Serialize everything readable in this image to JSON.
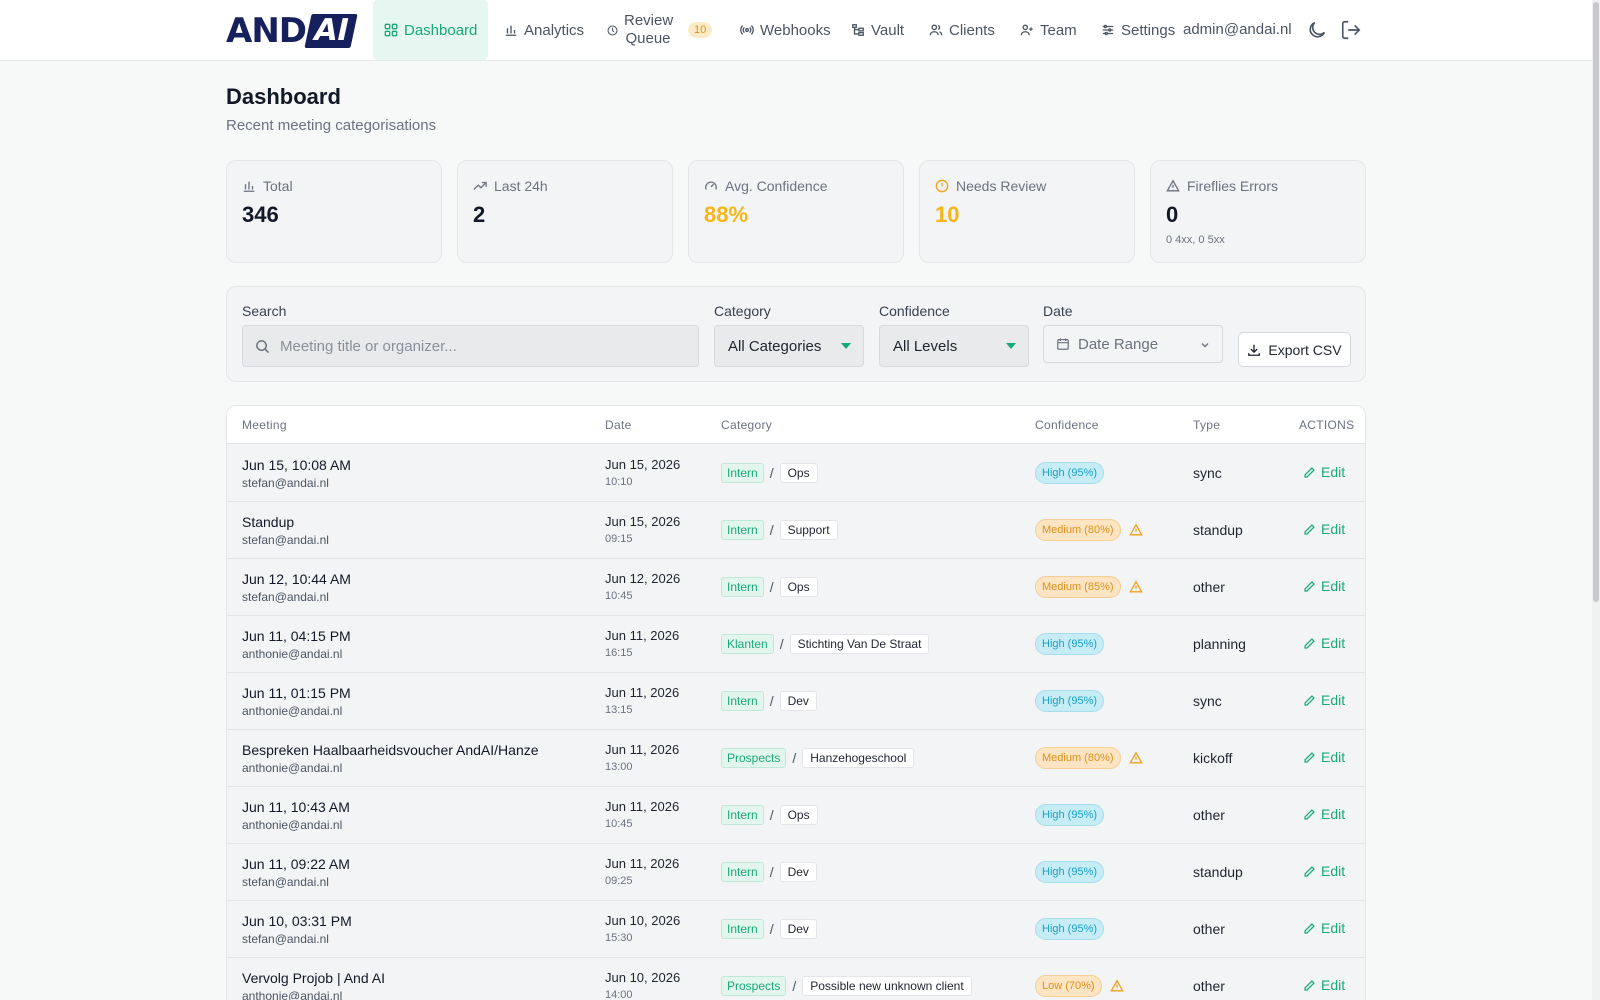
{
  "brand": {
    "logo_left": "AND",
    "logo_right": "AI"
  },
  "nav": {
    "items": [
      {
        "label": "Dashboard",
        "icon": "grid-icon",
        "active": true
      },
      {
        "label": "Analytics",
        "icon": "bar-chart-icon"
      },
      {
        "label": "Review Queue",
        "icon": "clock-icon",
        "badge": "10"
      },
      {
        "label": "Webhooks",
        "icon": "broadcast-icon"
      },
      {
        "label": "Vault",
        "icon": "folder-tree-icon"
      },
      {
        "label": "Clients",
        "icon": "users-icon"
      },
      {
        "label": "Team",
        "icon": "user-plus-icon"
      },
      {
        "label": "Settings",
        "icon": "sliders-icon"
      }
    ],
    "user_email": "admin@andai.nl"
  },
  "header": {
    "title": "Dashboard",
    "subtitle": "Recent meeting categorisations"
  },
  "stats": [
    {
      "label": "Total",
      "value": "346",
      "icon": "bar-chart-icon"
    },
    {
      "label": "Last 24h",
      "value": "2",
      "icon": "trending-up-icon"
    },
    {
      "label": "Avg. Confidence",
      "value": "88%",
      "icon": "gauge-icon"
    },
    {
      "label": "Needs Review",
      "value": "10",
      "icon": "alert-circle-icon"
    },
    {
      "label": "Fireflies Errors",
      "value": "0",
      "sub": "0 4xx, 0 5xx",
      "icon": "alert-triangle-icon"
    }
  ],
  "filters": {
    "search_label": "Search",
    "search_placeholder": "Meeting title or organizer...",
    "category_label": "Category",
    "category_value": "All Categories",
    "confidence_label": "Confidence",
    "confidence_value": "All Levels",
    "date_label": "Date",
    "date_placeholder": "Date Range",
    "export_label": "Export CSV"
  },
  "table": {
    "headers": {
      "meeting": "Meeting",
      "date": "Date",
      "category": "Category",
      "confidence": "Confidence",
      "type": "Type",
      "actions": "ACTIONS"
    },
    "edit_label": "Edit",
    "rows": [
      {
        "title": "Jun 15, 10:08 AM",
        "organizer": "stefan@andai.nl",
        "date": "Jun 15, 2026",
        "time": "10:10",
        "cat": "Intern",
        "sub": "Ops",
        "conf": "High (95%)",
        "level": "high",
        "type": "sync"
      },
      {
        "title": "Standup",
        "organizer": "stefan@andai.nl",
        "date": "Jun 15, 2026",
        "time": "09:15",
        "cat": "Intern",
        "sub": "Support",
        "conf": "Medium (80%)",
        "level": "medium",
        "type": "standup"
      },
      {
        "title": "Jun 12, 10:44 AM",
        "organizer": "stefan@andai.nl",
        "date": "Jun 12, 2026",
        "time": "10:45",
        "cat": "Intern",
        "sub": "Ops",
        "conf": "Medium (85%)",
        "level": "medium",
        "type": "other"
      },
      {
        "title": "Jun 11, 04:15 PM",
        "organizer": "anthonie@andai.nl",
        "date": "Jun 11, 2026",
        "time": "16:15",
        "cat": "Klanten",
        "sub": "Stichting Van De Straat",
        "conf": "High (95%)",
        "level": "high",
        "type": "planning"
      },
      {
        "title": "Jun 11, 01:15 PM",
        "organizer": "anthonie@andai.nl",
        "date": "Jun 11, 2026",
        "time": "13:15",
        "cat": "Intern",
        "sub": "Dev",
        "conf": "High (95%)",
        "level": "high",
        "type": "sync"
      },
      {
        "title": "Bespreken Haalbaarheidsvoucher AndAI/Hanze",
        "organizer": "anthonie@andai.nl",
        "date": "Jun 11, 2026",
        "time": "13:00",
        "cat": "Prospects",
        "sub": "Hanzehogeschool",
        "conf": "Medium (80%)",
        "level": "medium",
        "type": "kickoff"
      },
      {
        "title": "Jun 11, 10:43 AM",
        "organizer": "anthonie@andai.nl",
        "date": "Jun 11, 2026",
        "time": "10:45",
        "cat": "Intern",
        "sub": "Ops",
        "conf": "High (95%)",
        "level": "high",
        "type": "other"
      },
      {
        "title": "Jun 11, 09:22 AM",
        "organizer": "stefan@andai.nl",
        "date": "Jun 11, 2026",
        "time": "09:25",
        "cat": "Intern",
        "sub": "Dev",
        "conf": "High (95%)",
        "level": "high",
        "type": "standup"
      },
      {
        "title": "Jun 10, 03:31 PM",
        "organizer": "stefan@andai.nl",
        "date": "Jun 10, 2026",
        "time": "15:30",
        "cat": "Intern",
        "sub": "Dev",
        "conf": "High (95%)",
        "level": "high",
        "type": "other"
      },
      {
        "title": "Vervolg Projob | And AI",
        "organizer": "anthonie@andai.nl",
        "date": "Jun 10, 2026",
        "time": "14:00",
        "cat": "Prospects",
        "sub": "Possible new unknown client",
        "conf": "Low (70%)",
        "level": "low",
        "type": "other"
      }
    ]
  }
}
